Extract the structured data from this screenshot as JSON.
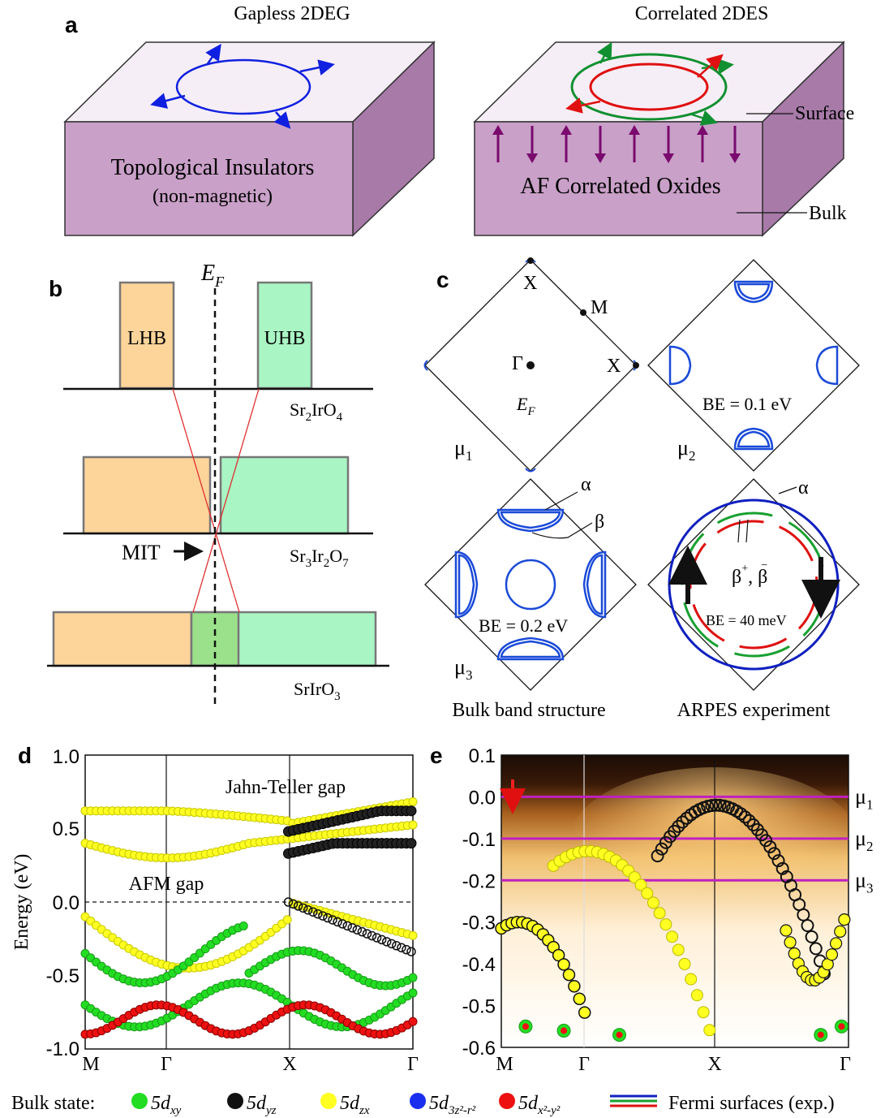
{
  "panel_labels": {
    "a": "a",
    "b": "b",
    "c": "c",
    "d": "d",
    "e": "e"
  },
  "panel_a": {
    "left_title": "Gapless 2DEG",
    "right_title": "Correlated 2DES",
    "left_text1": "Topological Insulators",
    "left_text2": "(non-magnetic)",
    "right_text": "AF Correlated Oxides",
    "surface_label": "Surface",
    "bulk_label": "Bulk",
    "colors": {
      "block_face": "#c9a0c8",
      "block_top": "#f6eef6",
      "spin_arrow": "#7a0a6e",
      "blue_loop": "#1020e0",
      "green_loop": "#109030",
      "red_loop": "#e01010"
    }
  },
  "panel_b": {
    "ef_label": "E",
    "ef_sub": "F",
    "lhb": "LHB",
    "uhb": "UHB",
    "mit": "MIT",
    "compounds": [
      {
        "main": "Sr",
        "s1": "2",
        "mid": "IrO",
        "s2": "4",
        "tail": "",
        "s3": ""
      },
      {
        "main": "Sr",
        "s1": "3",
        "mid": "Ir",
        "s2": "2",
        "tail": "O",
        "s3": "7"
      },
      {
        "main": "SrIrO",
        "s1": "3",
        "mid": "",
        "s2": "",
        "tail": "",
        "s3": ""
      }
    ],
    "colors": {
      "lower": "#fdd49a",
      "upper": "#a9f5c4",
      "overlap": "#9be08a"
    }
  },
  "panel_c": {
    "x_label": "X",
    "m_label": "M",
    "gamma_label": "Γ",
    "ef_label": "E",
    "ef_sub": "F",
    "mu1": "μ",
    "mu1_sub": "1",
    "mu2": "μ",
    "mu2_sub": "2",
    "mu3": "μ",
    "mu3_sub": "3",
    "be1": "BE = 0.1 eV",
    "be2": "BE = 0.2 eV",
    "be3": "BE = 40 meV",
    "alpha": "α",
    "beta": "β",
    "beta_pm": "β",
    "plus": "+",
    "minus": "−",
    "caption_left": "Bulk band structure",
    "caption_right": "ARPES experiment"
  },
  "panel_d": {
    "ylabel": "Energy (eV)",
    "yticks": [
      "1.0",
      "0.5",
      "0.0",
      "-0.5",
      "-1.0"
    ],
    "xticks": [
      "M",
      "Γ",
      "X",
      "Γ"
    ],
    "jt_gap": "Jahn-Teller gap",
    "afm_gap": "AFM gap"
  },
  "panel_e": {
    "yticks": [
      "0.1",
      "0.0",
      "-0.1",
      "-0.2",
      "-0.3",
      "-0.4",
      "-0.5",
      "-0.6"
    ],
    "xticks": [
      "M",
      "Γ",
      "X",
      "Γ"
    ],
    "mu_labels": [
      {
        "m": "μ",
        "s": "1"
      },
      {
        "m": "μ",
        "s": "2"
      },
      {
        "m": "μ",
        "s": "3"
      }
    ],
    "mu_energies": [
      0.0,
      -0.1,
      -0.2
    ]
  },
  "legend": {
    "title": "Bulk state:",
    "items": [
      {
        "color": "#22dd22",
        "base": "5d",
        "sub": "xy"
      },
      {
        "color": "#111111",
        "base": "5d",
        "sub": "yz"
      },
      {
        "color": "#ffff22",
        "base": "5d",
        "sub": "zx"
      },
      {
        "color": "#1a2ef0",
        "base": "5d",
        "sub": "3z²-r²"
      },
      {
        "color": "#ee1111",
        "base": "5d",
        "sub": "x²-y²"
      }
    ],
    "fermi": "Fermi surfaces (exp.)"
  }
}
